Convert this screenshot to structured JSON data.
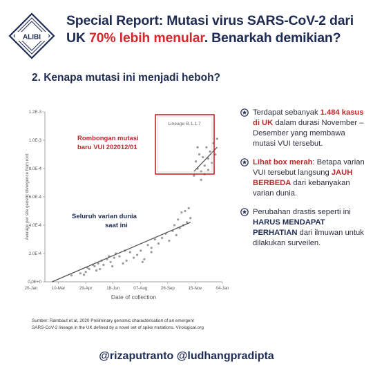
{
  "header": {
    "logo_text": "ALIBI",
    "title_line1": "Special Report: Mutasi virus SARS-CoV-2 dari",
    "title_line2_a": "UK ",
    "title_line2_b": "70% lebih menular",
    "title_line2_c": ". Benarkah demikian?"
  },
  "section_title": "2. Kenapa mutasi ini menjadi heboh?",
  "chart_data": {
    "type": "scatter",
    "xlabel": "Date of collection",
    "ylabel": "Average per site genetic divergence from root",
    "x_ticks": [
      "20-Jan",
      "10-Mar",
      "29-Apr",
      "18-Jun",
      "07-Aug",
      "26-Sep",
      "15-Nov",
      "04-Jan"
    ],
    "y_ticks": [
      "0.0E+0",
      "2.0E-4",
      "4.0E-4",
      "6.0E-4",
      "8.0E-4",
      "1.0E-3",
      "1.2E-3"
    ],
    "ylim": [
      0,
      0.0012
    ],
    "grid": false,
    "inset_label": "Lineage B.1.1.7",
    "annotation_red": [
      "Rombongan mutasi",
      "baru VUI 202012/01"
    ],
    "annotation_dark": [
      "Seluruh varian dunia",
      "saat ini"
    ],
    "series": [
      {
        "points": [
          [
            0.15,
            4.5e-05
          ],
          [
            0.2,
            6e-05
          ],
          [
            0.22,
            5e-05
          ],
          [
            0.23,
            7e-05
          ],
          [
            0.24,
            0.0001
          ],
          [
            0.25,
            9e-05
          ],
          [
            0.27,
            0.00012
          ],
          [
            0.28,
            0.00011
          ],
          [
            0.29,
            8e-05
          ],
          [
            0.3,
            0.00013
          ],
          [
            0.31,
            9e-05
          ],
          [
            0.32,
            0.00015
          ],
          [
            0.33,
            0.00012
          ],
          [
            0.35,
            0.00016
          ],
          [
            0.36,
            0.00018
          ],
          [
            0.37,
            0.00014
          ],
          [
            0.38,
            0.00011
          ],
          [
            0.39,
            0.00017
          ],
          [
            0.4,
            0.0002
          ],
          [
            0.42,
            0.00018
          ],
          [
            0.44,
            0.00013
          ],
          [
            0.46,
            0.00015
          ],
          [
            0.48,
            0.00021
          ],
          [
            0.5,
            0.00017
          ],
          [
            0.52,
            0.00019
          ],
          [
            0.54,
            0.00022
          ],
          [
            0.56,
            0.00016
          ],
          [
            0.58,
            0.00026
          ],
          [
            0.6,
            0.00024
          ],
          [
            0.62,
            0.0003
          ],
          [
            0.64,
            0.00027
          ],
          [
            0.66,
            0.00031
          ],
          [
            0.68,
            0.00034
          ],
          [
            0.7,
            0.00029
          ],
          [
            0.72,
            0.00036
          ],
          [
            0.74,
            0.00033
          ],
          [
            0.76,
            0.00038
          ],
          [
            0.78,
            0.0004
          ],
          [
            0.8,
            0.00042
          ],
          [
            0.82,
            0.00045
          ],
          [
            0.77,
            0.00049
          ],
          [
            0.79,
            0.0005
          ],
          [
            0.81,
            0.00052
          ],
          [
            0.75,
            0.00044
          ],
          [
            0.73,
            0.0004
          ],
          [
            0.6,
            0.00021
          ],
          [
            0.55,
            0.00014
          ],
          [
            0.45,
            0.00022
          ]
        ]
      },
      {
        "points": [
          [
            0.84,
            0.00075
          ],
          [
            0.85,
            0.00085
          ],
          [
            0.86,
            0.0008
          ],
          [
            0.87,
            0.0009
          ],
          [
            0.88,
            0.00078
          ],
          [
            0.89,
            0.00088
          ],
          [
            0.9,
            0.00082
          ],
          [
            0.91,
            0.00095
          ],
          [
            0.92,
            0.00087
          ],
          [
            0.93,
            0.00092
          ],
          [
            0.94,
            0.00084
          ],
          [
            0.95,
            0.00098
          ],
          [
            0.96,
            0.0009
          ],
          [
            0.97,
            0.00101
          ],
          [
            0.86,
            0.00095
          ],
          [
            0.88,
            0.00072
          ],
          [
            0.9,
            0.00076
          ],
          [
            0.92,
            0.00079
          ]
        ]
      }
    ],
    "regression_lines": [
      {
        "x": [
          0.04,
          0.82
        ],
        "y": [
          0.0,
          0.00042
        ]
      },
      {
        "x": [
          0.84,
          0.97
        ],
        "y": [
          0.00078,
          0.00095
        ]
      }
    ]
  },
  "bullets": [
    {
      "icon": "star-badge-icon",
      "parts": [
        {
          "t": "Terdapat sebanyak ",
          "s": ""
        },
        {
          "t": "1.484 kasus di UK",
          "s": "hl"
        },
        {
          "t": " dalam durasi November – Desember yang membawa mutasi VUI tersebut.",
          "s": ""
        }
      ]
    },
    {
      "icon": "star-badge-icon",
      "parts": [
        {
          "t": "Lihat box merah",
          "s": "hl"
        },
        {
          "t": ": Betapa varian VUI tersebut langsung ",
          "s": ""
        },
        {
          "t": "JAUH BERBEDA",
          "s": "hl"
        },
        {
          "t": " dari kebanyakan varian dunia.",
          "s": ""
        }
      ]
    },
    {
      "icon": "star-badge-icon",
      "parts": [
        {
          "t": "Perubahan drastis seperti ini ",
          "s": ""
        },
        {
          "t": "HARUS MENDAPAT PERHATIAN",
          "s": "hlb"
        },
        {
          "t": " dari ilmuwan untuk dilakukan surveilen.",
          "s": ""
        }
      ]
    }
  ],
  "source_line1": "Sumber: Rambaut et al, 2020 Preliminary genomic characterisation of an emergent",
  "source_line2": "SARS-CoV-2 lineage in the UK defined by a novel set of spike mutations. Virological.org",
  "footer": "@rizaputranto @ludhangpradipta",
  "colors": {
    "navy": "#1e2b52",
    "red": "#d8262c"
  }
}
